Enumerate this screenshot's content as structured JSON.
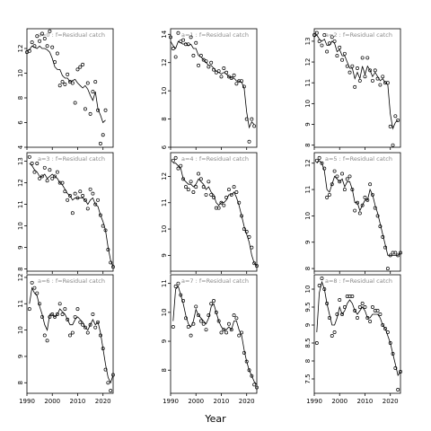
{
  "chart_data": [
    {
      "type": "scatter",
      "panel_label": "a=0 : f=Residual catch",
      "xlim": [
        1990,
        2024
      ],
      "ylim": [
        4,
        13.6
      ],
      "yticks": [
        4,
        6,
        8,
        10,
        12
      ],
      "x": [
        1990,
        1991,
        1992,
        1993,
        1994,
        1995,
        1996,
        1997,
        1998,
        1999,
        2000,
        2001,
        2002,
        2003,
        2004,
        2005,
        2006,
        2007,
        2008,
        2009,
        2010,
        2011,
        2012,
        2013,
        2014,
        2015,
        2016,
        2017,
        2018,
        2019,
        2020,
        2021,
        2022,
        2023
      ],
      "observed": [
        11.7,
        11.8,
        12.5,
        12.2,
        13.0,
        12.6,
        13.2,
        12.8,
        12.2,
        13.4,
        12.1,
        10.9,
        11.6,
        9.0,
        9.3,
        9.1,
        9.9,
        9.3,
        9.2,
        7.6,
        10.3,
        10.5,
        10.7,
        7.1,
        9.2,
        6.7,
        8.5,
        9.3,
        7.0,
        4.3,
        5.0,
        7.0
      ],
      "observed_x": [
        1990,
        1991,
        1992,
        1993,
        1994,
        1995,
        1996,
        1997,
        1998,
        1999,
        2000,
        2001,
        2002,
        2003,
        2004,
        2005,
        2006,
        2007,
        2008,
        2009,
        2010,
        2011,
        2012,
        2013,
        2014,
        2015,
        2016,
        2017,
        2018,
        2019,
        2020,
        2021
      ],
      "fitted": [
        11.8,
        11.9,
        12.2,
        12.1,
        12.0,
        12.2,
        12.0,
        12.0,
        11.9,
        11.7,
        11.2,
        10.5,
        10.3,
        10.3,
        9.8,
        9.6,
        9.6,
        9.3,
        9.4,
        9.5,
        9.2,
        9.0,
        8.8,
        9.0,
        8.7,
        8.2,
        7.8,
        8.5,
        7.1,
        6.6,
        6.0,
        6.2
      ]
    },
    {
      "type": "scatter",
      "panel_label": "a=3 : f=Residual catch",
      "xlim": [
        1990,
        2024
      ],
      "ylim": [
        7.9,
        13.4
      ],
      "yticks": [
        8,
        9,
        10,
        11,
        12,
        13
      ],
      "observed_x": [
        1991,
        1992,
        1993,
        1994,
        1995,
        1996,
        1997,
        1998,
        1999,
        2000,
        2001,
        2002,
        2003,
        2004,
        2005,
        2006,
        2007,
        2008,
        2009,
        2010,
        2011,
        2012,
        2013,
        2014,
        2015,
        2016,
        2017,
        2018,
        2019,
        2020,
        2021,
        2022,
        2023,
        2024
      ],
      "observed": [
        13.2,
        12.9,
        12.5,
        12.9,
        12.2,
        12.3,
        12.7,
        12.1,
        12.6,
        12.2,
        12.3,
        12.5,
        12.0,
        12.0,
        11.6,
        11.2,
        11.4,
        10.6,
        11.5,
        11.3,
        11.6,
        11.4,
        11.2,
        10.8,
        11.7,
        11.5,
        11.0,
        11.2,
        10.5,
        10.0,
        9.8,
        8.9,
        8.3,
        8.1
      ],
      "fitted": [
        12.9,
        12.8,
        12.6,
        12.5,
        12.3,
        12.3,
        12.4,
        12.2,
        12.3,
        12.4,
        12.3,
        12.2,
        12.0,
        11.9,
        11.7,
        11.5,
        11.4,
        11.2,
        11.3,
        11.3,
        11.3,
        11.3,
        11.2,
        11.0,
        11.2,
        11.3,
        11.0,
        10.9,
        10.5,
        10.2,
        9.8,
        9.0,
        8.4,
        8.1
      ]
    },
    {
      "type": "scatter",
      "panel_label": "a=6 : f=Residual catch",
      "xlim": [
        1990,
        2024
      ],
      "ylim": [
        7.6,
        12.1
      ],
      "yticks": [
        8,
        9,
        10,
        11,
        12
      ],
      "observed_x": [
        1991,
        1992,
        1993,
        1994,
        1995,
        1996,
        1997,
        1998,
        1999,
        2000,
        2001,
        2002,
        2003,
        2004,
        2005,
        2006,
        2007,
        2008,
        2009,
        2010,
        2011,
        2012,
        2013,
        2014,
        2015,
        2016,
        2017,
        2018,
        2019,
        2020,
        2021,
        2022,
        2023,
        2024
      ],
      "observed": [
        10.8,
        11.8,
        11.6,
        11.4,
        11.0,
        10.5,
        9.8,
        9.6,
        10.5,
        10.6,
        10.5,
        10.6,
        11.0,
        10.6,
        10.8,
        10.4,
        9.8,
        9.9,
        10.5,
        10.8,
        10.3,
        10.2,
        10.1,
        9.9,
        10.2,
        10.6,
        10.1,
        10.3,
        9.8,
        9.3,
        8.5,
        8.0,
        7.7,
        8.3
      ],
      "fitted": [
        11.0,
        11.6,
        11.4,
        11.3,
        10.9,
        10.6,
        10.2,
        10.0,
        10.6,
        10.6,
        10.5,
        10.6,
        10.8,
        10.7,
        10.6,
        10.4,
        10.2,
        10.2,
        10.4,
        10.5,
        10.4,
        10.3,
        10.1,
        10.0,
        10.2,
        10.4,
        10.2,
        10.3,
        9.9,
        9.3,
        8.7,
        8.2,
        8.0,
        8.3
      ]
    },
    {
      "type": "scatter",
      "panel_label": "a=1 : f=Residual catch",
      "xlim": [
        1990,
        2024
      ],
      "ylim": [
        6,
        14.4
      ],
      "yticks": [
        6,
        8,
        10,
        12,
        14
      ],
      "observed_x": [
        1990,
        1991,
        1992,
        1993,
        1994,
        1995,
        1996,
        1997,
        1998,
        1999,
        2000,
        2001,
        2002,
        2003,
        2004,
        2005,
        2006,
        2007,
        2008,
        2009,
        2010,
        2011,
        2012,
        2013,
        2014,
        2015,
        2016,
        2017,
        2018,
        2019,
        2020,
        2021,
        2022,
        2023
      ],
      "observed": [
        13.8,
        13.0,
        12.4,
        14.1,
        13.5,
        13.6,
        13.3,
        13.3,
        13.8,
        12.5,
        13.4,
        11.8,
        12.5,
        12.2,
        12.1,
        11.7,
        12.0,
        11.5,
        11.3,
        11.4,
        11.0,
        11.6,
        11.3,
        11.0,
        10.9,
        11.1,
        10.5,
        10.7,
        10.7,
        10.3,
        8.0,
        6.4,
        8.0,
        7.5
      ],
      "fitted": [
        13.5,
        13.2,
        13.0,
        13.5,
        13.4,
        13.3,
        13.4,
        13.2,
        13.3,
        13.0,
        13.0,
        12.5,
        12.4,
        12.2,
        12.0,
        11.8,
        11.8,
        11.6,
        11.4,
        11.3,
        11.2,
        11.3,
        11.2,
        11.0,
        10.9,
        10.9,
        10.7,
        10.7,
        10.6,
        10.2,
        8.5,
        7.4,
        7.8,
        7.6
      ]
    },
    {
      "type": "scatter",
      "panel_label": "a=4 : f=Residual catch",
      "xlim": [
        1990,
        2024
      ],
      "ylim": [
        8.4,
        12.9
      ],
      "yticks": [
        9,
        10,
        11,
        12
      ],
      "observed_x": [
        1991,
        1992,
        1993,
        1994,
        1995,
        1996,
        1997,
        1998,
        1999,
        2000,
        2001,
        2002,
        2003,
        2004,
        2005,
        2006,
        2007,
        2008,
        2009,
        2010,
        2011,
        2012,
        2013,
        2014,
        2015,
        2016,
        2017,
        2018,
        2019,
        2020,
        2021,
        2022,
        2023,
        2024
      ],
      "observed": [
        12.6,
        12.7,
        12.3,
        12.4,
        11.9,
        11.6,
        11.5,
        11.8,
        11.4,
        11.6,
        12.1,
        11.9,
        11.6,
        11.3,
        11.8,
        11.3,
        11.2,
        10.8,
        10.8,
        11.0,
        10.9,
        11.2,
        11.5,
        11.3,
        11.6,
        11.4,
        11.0,
        10.5,
        10.0,
        9.9,
        9.7,
        9.3,
        8.7,
        8.6
      ],
      "fitted": [
        12.5,
        12.5,
        12.4,
        12.3,
        11.9,
        11.8,
        11.7,
        11.7,
        11.6,
        11.7,
        11.9,
        11.8,
        11.7,
        11.5,
        11.6,
        11.4,
        11.3,
        11.0,
        10.9,
        11.0,
        11.0,
        11.1,
        11.3,
        11.3,
        11.4,
        11.2,
        10.9,
        10.5,
        10.1,
        9.8,
        9.5,
        9.0,
        8.7,
        8.6
      ]
    },
    {
      "type": "scatter",
      "panel_label": "a=7 : f=Residual catch",
      "xlim": [
        1990,
        2024
      ],
      "ylim": [
        7.2,
        11.3
      ],
      "yticks": [
        8,
        9,
        10,
        11
      ],
      "observed_x": [
        1991,
        1992,
        1993,
        1994,
        1995,
        1996,
        1997,
        1998,
        1999,
        2000,
        2001,
        2002,
        2003,
        2004,
        2005,
        2006,
        2007,
        2008,
        2009,
        2010,
        2011,
        2012,
        2013,
        2014,
        2015,
        2016,
        2017,
        2018,
        2019,
        2020,
        2021,
        2022,
        2023,
        2024
      ],
      "observed": [
        9.5,
        10.9,
        11.0,
        10.6,
        10.4,
        9.8,
        9.5,
        9.2,
        9.6,
        10.2,
        9.9,
        9.7,
        9.6,
        9.4,
        9.9,
        10.3,
        10.4,
        10.0,
        9.7,
        9.3,
        9.4,
        9.3,
        9.6,
        9.4,
        9.9,
        9.8,
        9.2,
        9.3,
        8.6,
        8.3,
        8.0,
        7.8,
        7.5,
        7.4
      ],
      "fitted": [
        9.7,
        10.8,
        10.9,
        10.6,
        10.3,
        9.9,
        9.6,
        9.5,
        9.7,
        10.1,
        9.9,
        9.8,
        9.7,
        9.6,
        9.8,
        10.2,
        10.3,
        10.0,
        9.7,
        9.5,
        9.4,
        9.4,
        9.5,
        9.4,
        9.7,
        9.7,
        9.4,
        9.2,
        8.7,
        8.3,
        8.0,
        7.8,
        7.6,
        7.5
      ]
    },
    {
      "type": "scatter",
      "panel_label": "a=2 : f=Residual catch",
      "xlim": [
        1990,
        2024
      ],
      "ylim": [
        7.9,
        13.6
      ],
      "yticks": [
        8,
        9,
        10,
        11,
        12,
        13
      ],
      "observed_x": [
        1990,
        1991,
        1992,
        1993,
        1994,
        1995,
        1996,
        1997,
        1998,
        1999,
        2000,
        2001,
        2002,
        2003,
        2004,
        2005,
        2006,
        2007,
        2008,
        2009,
        2010,
        2011,
        2012,
        2013,
        2014,
        2015,
        2016,
        2017,
        2018,
        2019,
        2020,
        2021,
        2022,
        2023
      ],
      "observed": [
        13.3,
        13.4,
        13.0,
        12.8,
        13.3,
        12.5,
        12.9,
        13.2,
        13.0,
        12.3,
        12.7,
        12.1,
        12.4,
        11.8,
        11.5,
        11.8,
        10.8,
        11.7,
        11.1,
        12.2,
        11.3,
        12.2,
        11.6,
        11.1,
        11.6,
        11.2,
        10.9,
        11.3,
        11.0,
        11.0,
        8.9,
        8.0,
        9.4,
        9.2
      ],
      "fitted": [
        13.2,
        13.3,
        13.1,
        13.0,
        13.1,
        12.8,
        12.8,
        13.0,
        12.9,
        12.5,
        12.6,
        12.3,
        12.3,
        12.0,
        11.7,
        11.7,
        11.2,
        11.5,
        11.2,
        11.8,
        11.4,
        11.8,
        11.6,
        11.3,
        11.5,
        11.3,
        11.1,
        11.2,
        11.0,
        10.9,
        9.5,
        8.8,
        9.1,
        9.2
      ]
    },
    {
      "type": "scatter",
      "panel_label": "a=5 : f=Residual catch",
      "xlim": [
        1990,
        2024
      ],
      "ylim": [
        7.9,
        12.4
      ],
      "yticks": [
        8,
        9,
        10,
        11,
        12
      ],
      "observed_x": [
        1991,
        1992,
        1993,
        1994,
        1995,
        1996,
        1997,
        1998,
        1999,
        2000,
        2001,
        2002,
        2003,
        2004,
        2005,
        2006,
        2007,
        2008,
        2009,
        2010,
        2011,
        2012,
        2013,
        2014,
        2015,
        2016,
        2017,
        2018,
        2019,
        2020,
        2021,
        2022,
        2023,
        2024
      ],
      "observed": [
        12.1,
        12.2,
        12.0,
        11.8,
        10.7,
        10.8,
        11.2,
        11.7,
        11.5,
        11.3,
        11.6,
        11.0,
        11.4,
        11.5,
        11.0,
        10.2,
        10.5,
        10.1,
        10.4,
        10.7,
        10.6,
        11.2,
        10.8,
        10.3,
        10.0,
        9.6,
        9.2,
        8.8,
        8.0,
        8.5,
        8.6,
        8.6,
        8.5,
        8.6
      ],
      "fitted": [
        12.0,
        12.1,
        12.0,
        11.7,
        11.0,
        10.9,
        11.2,
        11.5,
        11.4,
        11.3,
        11.4,
        11.1,
        11.3,
        11.3,
        11.0,
        10.5,
        10.5,
        10.2,
        10.4,
        10.6,
        10.6,
        11.0,
        10.8,
        10.4,
        10.1,
        9.7,
        9.3,
        8.9,
        8.5,
        8.5,
        8.5,
        8.5,
        8.5,
        8.6
      ]
    },
    {
      "type": "scatter",
      "panel_label": "a=8 : f=Residual catch",
      "xlim": [
        1990,
        2024
      ],
      "ylim": [
        7.1,
        10.4
      ],
      "yticks": [
        7.5,
        8.0,
        8.5,
        9.0,
        9.5,
        10.0
      ],
      "observed_x": [
        1991,
        1992,
        1993,
        1994,
        1995,
        1996,
        1997,
        1998,
        1999,
        2000,
        2001,
        2002,
        2003,
        2004,
        2005,
        2006,
        2007,
        2008,
        2009,
        2010,
        2011,
        2012,
        2013,
        2014,
        2015,
        2016,
        2017,
        2018,
        2019,
        2020,
        2021,
        2022,
        2023,
        2024
      ],
      "observed": [
        8.5,
        10.1,
        10.3,
        10.0,
        9.6,
        9.2,
        8.7,
        8.8,
        9.3,
        9.7,
        9.3,
        9.5,
        9.8,
        9.8,
        9.8,
        9.4,
        9.2,
        9.5,
        9.6,
        9.5,
        9.2,
        9.1,
        9.5,
        9.4,
        9.4,
        9.3,
        9.0,
        8.9,
        8.8,
        8.5,
        8.2,
        7.8,
        7.2,
        7.7
      ],
      "fitted": [
        8.8,
        9.9,
        10.2,
        10.0,
        9.6,
        9.3,
        9.0,
        9.0,
        9.2,
        9.5,
        9.3,
        9.4,
        9.6,
        9.7,
        9.6,
        9.4,
        9.3,
        9.4,
        9.5,
        9.4,
        9.2,
        9.2,
        9.3,
        9.3,
        9.3,
        9.2,
        9.0,
        8.9,
        8.7,
        8.5,
        8.2,
        7.9,
        7.6,
        7.7
      ]
    }
  ],
  "x_axis": {
    "label": "Year",
    "ticks": [
      1990,
      2000,
      2010,
      2020
    ]
  }
}
